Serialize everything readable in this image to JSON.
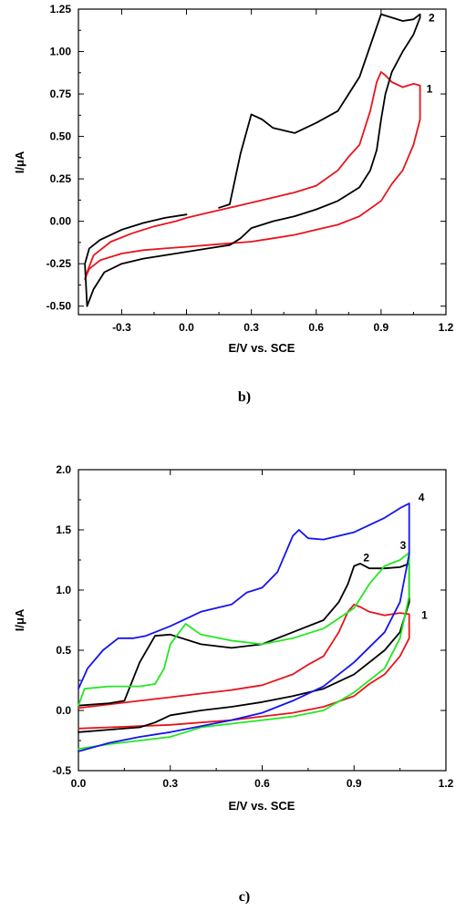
{
  "chart_data": [
    {
      "type": "line",
      "panel_label": "b)",
      "xlabel": "E/V vs. SCE",
      "ylabel": "I/μA",
      "xlim": [
        -0.5,
        1.2
      ],
      "ylim": [
        -0.55,
        1.25
      ],
      "xticks": [
        "-0.3",
        "0.0",
        "0.3",
        "0.6",
        "0.9",
        "1.2"
      ],
      "xtick_values": [
        -0.3,
        0.0,
        0.3,
        0.6,
        0.9,
        1.2
      ],
      "yticks": [
        "-0.50",
        "-0.25",
        "0.00",
        "0.25",
        "0.50",
        "0.75",
        "1.00",
        "1.25"
      ],
      "ytick_values": [
        -0.5,
        -0.25,
        0.0,
        0.25,
        0.5,
        0.75,
        1.0,
        1.25
      ],
      "series": [
        {
          "name": "1",
          "color": "#e8141c",
          "label_at": [
            1.11,
            0.78
          ],
          "x": [
            0.0,
            0.1,
            0.2,
            0.3,
            0.4,
            0.5,
            0.6,
            0.7,
            0.75,
            0.8,
            0.85,
            0.88,
            0.9,
            0.92,
            0.95,
            1.0,
            1.05,
            1.08,
            1.08,
            1.05,
            1.0,
            0.95,
            0.9,
            0.8,
            0.7,
            0.6,
            0.5,
            0.4,
            0.3,
            0.2,
            0.1,
            0.0,
            -0.1,
            -0.2,
            -0.3,
            -0.4,
            -0.45,
            -0.47,
            -0.46,
            -0.43,
            -0.35,
            -0.25,
            -0.15,
            -0.05,
            0.0
          ],
          "y": [
            0.02,
            0.05,
            0.08,
            0.11,
            0.14,
            0.17,
            0.21,
            0.3,
            0.38,
            0.45,
            0.65,
            0.82,
            0.88,
            0.86,
            0.82,
            0.79,
            0.81,
            0.8,
            0.6,
            0.45,
            0.3,
            0.22,
            0.12,
            0.03,
            -0.02,
            -0.05,
            -0.08,
            -0.1,
            -0.12,
            -0.13,
            -0.14,
            -0.15,
            -0.16,
            -0.17,
            -0.19,
            -0.23,
            -0.28,
            -0.34,
            -0.3,
            -0.2,
            -0.12,
            -0.07,
            -0.03,
            0.0,
            0.02
          ]
        },
        {
          "name": "2",
          "color": "#000000",
          "label_at": [
            1.12,
            1.2
          ],
          "x": [
            0.0,
            -0.1,
            -0.2,
            -0.3,
            -0.4,
            -0.45,
            -0.47,
            -0.46,
            -0.43,
            -0.38,
            -0.3,
            -0.2,
            -0.1,
            0.0,
            0.1,
            0.2,
            0.25,
            0.3,
            0.4,
            0.5,
            0.6,
            0.7,
            0.8,
            0.85,
            0.88,
            0.9,
            0.92,
            0.95,
            1.0,
            1.05,
            1.08,
            1.08,
            1.05,
            1.0,
            0.9,
            0.8,
            0.7,
            0.6,
            0.5,
            0.4,
            0.35,
            0.3,
            0.25,
            0.2,
            0.15
          ],
          "y": [
            0.04,
            0.02,
            -0.01,
            -0.05,
            -0.11,
            -0.16,
            -0.25,
            -0.5,
            -0.4,
            -0.3,
            -0.25,
            -0.22,
            -0.2,
            -0.18,
            -0.16,
            -0.14,
            -0.1,
            -0.04,
            0.0,
            0.03,
            0.07,
            0.12,
            0.2,
            0.3,
            0.42,
            0.6,
            0.75,
            0.88,
            1.0,
            1.1,
            1.2,
            1.22,
            1.19,
            1.18,
            1.22,
            0.85,
            0.65,
            0.58,
            0.52,
            0.55,
            0.6,
            0.63,
            0.4,
            0.1,
            0.08
          ]
        }
      ]
    },
    {
      "type": "line",
      "panel_label": "c)",
      "xlabel": "E/V vs. SCE",
      "ylabel": "I/μA",
      "xlim": [
        0.0,
        1.2
      ],
      "ylim": [
        -0.5,
        2.0
      ],
      "xticks": [
        "0.0",
        "0.3",
        "0.6",
        "0.9",
        "1.2"
      ],
      "xtick_values": [
        0.0,
        0.3,
        0.6,
        0.9,
        1.2
      ],
      "yticks": [
        "-0.5",
        "0.0",
        "0.5",
        "1.0",
        "1.5",
        "2.0"
      ],
      "ytick_values": [
        -0.5,
        0.0,
        0.5,
        1.0,
        1.5,
        2.0
      ],
      "series": [
        {
          "name": "1",
          "color": "#e8141c",
          "label_at": [
            1.12,
            0.79
          ],
          "x": [
            0.0,
            0.1,
            0.2,
            0.3,
            0.4,
            0.5,
            0.6,
            0.7,
            0.75,
            0.8,
            0.85,
            0.88,
            0.9,
            0.92,
            0.95,
            1.0,
            1.05,
            1.08,
            1.08,
            1.05,
            1.0,
            0.95,
            0.9,
            0.8,
            0.7,
            0.6,
            0.5,
            0.4,
            0.3,
            0.2,
            0.1,
            0.0
          ],
          "y": [
            0.02,
            0.05,
            0.08,
            0.11,
            0.14,
            0.17,
            0.21,
            0.3,
            0.38,
            0.45,
            0.65,
            0.82,
            0.88,
            0.86,
            0.82,
            0.79,
            0.81,
            0.8,
            0.6,
            0.45,
            0.3,
            0.22,
            0.12,
            0.03,
            -0.02,
            -0.05,
            -0.08,
            -0.1,
            -0.12,
            -0.13,
            -0.14,
            -0.15
          ]
        },
        {
          "name": "2",
          "color": "#000000",
          "label_at": [
            0.93,
            1.27
          ],
          "x": [
            0.0,
            0.1,
            0.15,
            0.2,
            0.25,
            0.3,
            0.4,
            0.5,
            0.6,
            0.7,
            0.8,
            0.85,
            0.88,
            0.9,
            0.92,
            0.95,
            1.0,
            1.05,
            1.08,
            1.08,
            1.05,
            1.0,
            0.9,
            0.8,
            0.7,
            0.6,
            0.5,
            0.4,
            0.3,
            0.25,
            0.2,
            0.1,
            0.0
          ],
          "y": [
            0.04,
            0.06,
            0.08,
            0.4,
            0.62,
            0.63,
            0.55,
            0.52,
            0.55,
            0.65,
            0.75,
            0.9,
            1.05,
            1.2,
            1.22,
            1.18,
            1.18,
            1.19,
            1.22,
            0.9,
            0.65,
            0.5,
            0.3,
            0.18,
            0.12,
            0.07,
            0.03,
            0.0,
            -0.04,
            -0.1,
            -0.14,
            -0.16,
            -0.18
          ]
        },
        {
          "name": "3",
          "color": "#22e822",
          "label_at": [
            1.05,
            1.37
          ],
          "x": [
            0.0,
            0.02,
            0.1,
            0.2,
            0.25,
            0.28,
            0.3,
            0.35,
            0.4,
            0.5,
            0.6,
            0.7,
            0.8,
            0.9,
            0.95,
            1.0,
            1.05,
            1.08,
            1.08,
            1.05,
            1.0,
            0.9,
            0.8,
            0.7,
            0.6,
            0.5,
            0.4,
            0.35,
            0.3,
            0.2,
            0.1,
            0.0
          ],
          "y": [
            0.04,
            0.18,
            0.2,
            0.2,
            0.22,
            0.35,
            0.55,
            0.72,
            0.63,
            0.58,
            0.55,
            0.6,
            0.68,
            0.85,
            1.05,
            1.2,
            1.25,
            1.31,
            0.95,
            0.6,
            0.35,
            0.15,
            0.0,
            -0.05,
            -0.08,
            -0.11,
            -0.14,
            -0.18,
            -0.22,
            -0.25,
            -0.28,
            -0.32
          ]
        },
        {
          "name": "4",
          "color": "#1414f0",
          "label_at": [
            1.11,
            1.77
          ],
          "x": [
            0.0,
            0.03,
            0.08,
            0.13,
            0.18,
            0.22,
            0.3,
            0.4,
            0.45,
            0.5,
            0.55,
            0.6,
            0.65,
            0.7,
            0.72,
            0.75,
            0.8,
            0.9,
            1.0,
            1.05,
            1.08,
            1.08,
            1.05,
            1.0,
            0.9,
            0.8,
            0.7,
            0.6,
            0.5,
            0.4,
            0.3,
            0.2,
            0.1,
            0.0
          ],
          "y": [
            0.18,
            0.35,
            0.5,
            0.6,
            0.6,
            0.62,
            0.7,
            0.82,
            0.85,
            0.88,
            0.98,
            1.02,
            1.15,
            1.45,
            1.5,
            1.43,
            1.42,
            1.48,
            1.6,
            1.68,
            1.72,
            1.3,
            0.9,
            0.65,
            0.4,
            0.2,
            0.08,
            -0.02,
            -0.08,
            -0.13,
            -0.18,
            -0.22,
            -0.27,
            -0.34
          ]
        }
      ]
    }
  ]
}
